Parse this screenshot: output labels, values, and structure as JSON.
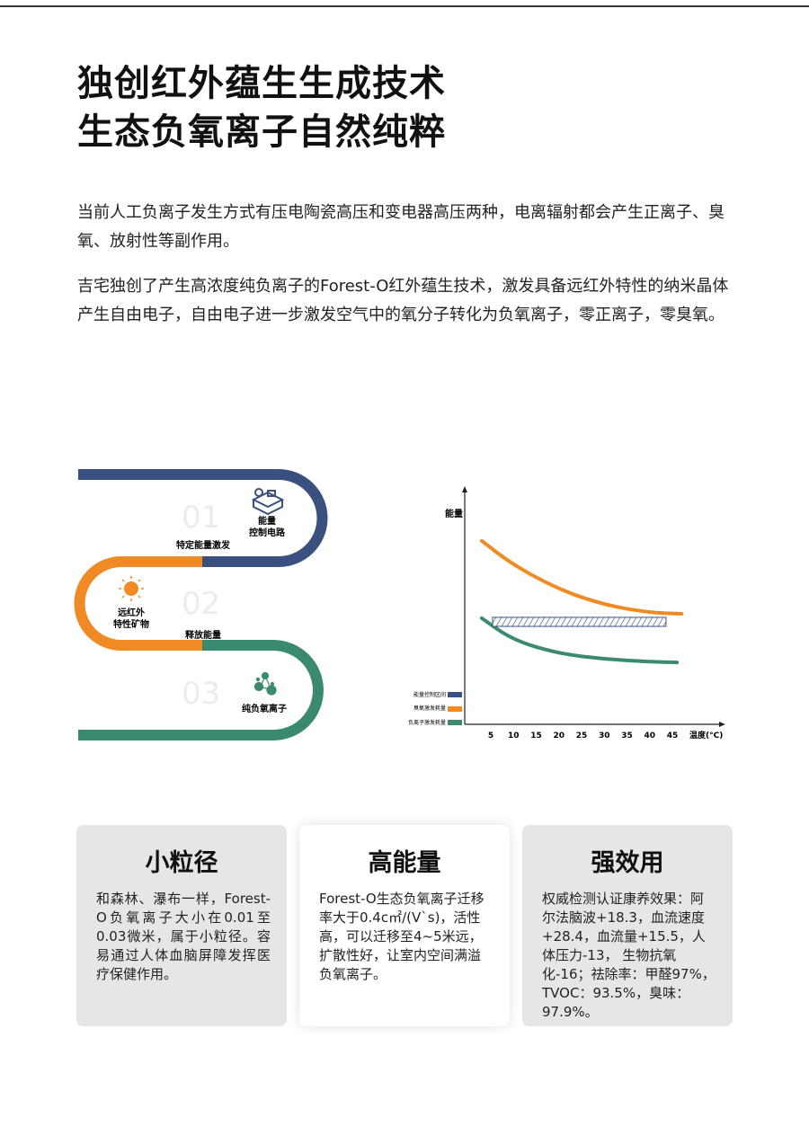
{
  "header": {
    "title_line1": "独创红外蕴生生成技术",
    "title_line2": "生态负氧离子自然纯粹"
  },
  "paragraphs": [
    "当前人工负离子发生方式有压电陶瓷高压和变电器高压两种，电离辐射都会产生正离子、臭氧、放射性等副作用。",
    "吉宅独创了产生高浓度纯负离子的Forest-O红外蕴生技术，激发具备远红外特性的纳米晶体产生自由电子，自由电子进一步激发空气中的氧分子转化为负氧离子，零正离子，零臭氧。"
  ],
  "process": {
    "steps": [
      {
        "number": "01",
        "label_line1": "能量",
        "label_line2": "控制电路",
        "caption": "特定能量激发",
        "icon": "circuit-icon",
        "color": "#3a5180"
      },
      {
        "number": "02",
        "label_line1": "远红外",
        "label_line2": "特性矿物",
        "caption": "释放能量",
        "icon": "sun-icon",
        "color": "#f08a24"
      },
      {
        "number": "03",
        "label_line1": "纯负氧离子",
        "label_line2": "",
        "caption": "",
        "icon": "molecule-icon",
        "color": "#3a8a6e"
      }
    ]
  },
  "chart_data": {
    "type": "line",
    "ylabel": "能量",
    "xlabel": "温度(°C)",
    "x_ticks": [
      5,
      10,
      15,
      20,
      25,
      30,
      35,
      40,
      45
    ],
    "xlim": [
      0,
      52
    ],
    "ylim": [
      0,
      100
    ],
    "grid": false,
    "legend_placement": "bottom-left",
    "series": [
      {
        "name": "臭氧激发耗量",
        "color": "#f08a24",
        "points": [
          [
            3,
            83
          ],
          [
            10,
            72
          ],
          [
            20,
            61
          ],
          [
            30,
            54
          ],
          [
            40,
            50.5
          ],
          [
            47,
            50
          ]
        ]
      },
      {
        "name": "负离子激发耗量",
        "color": "#3a8a6e",
        "points": [
          [
            3,
            48
          ],
          [
            10,
            38
          ],
          [
            20,
            32
          ],
          [
            30,
            29.5
          ],
          [
            40,
            28.3
          ],
          [
            46,
            28
          ]
        ]
      }
    ],
    "band": {
      "name": "能量控制区间",
      "color": "#3a5180",
      "x": [
        5.4,
        43.6
      ],
      "y": [
        44.3,
        48.4
      ]
    }
  },
  "cards": [
    {
      "title": "小粒径",
      "text": "和森林、瀑布一样，Forest-O负氧离子大小在0.01至0.03微米，属于小粒径。容易通过人体血脑屏障发挥医疗保健作用。"
    },
    {
      "title": "高能量",
      "text": "Forest-O生态负氧离子迁移率大于0.4c㎡/(V`s)，活性高，可以迁移至4~5米远，扩散性好，让室内空间满溢负氧离子。"
    },
    {
      "title": "强效用",
      "text": "权威检测认证康养效果：阿尔法脑波+18.3，血流速度+28.4，血流量+15.5，人体压力-13， 生物抗氧化-16；祛除率：甲醛97%，TVOC：93.5%，臭味：97.9%。"
    }
  ]
}
